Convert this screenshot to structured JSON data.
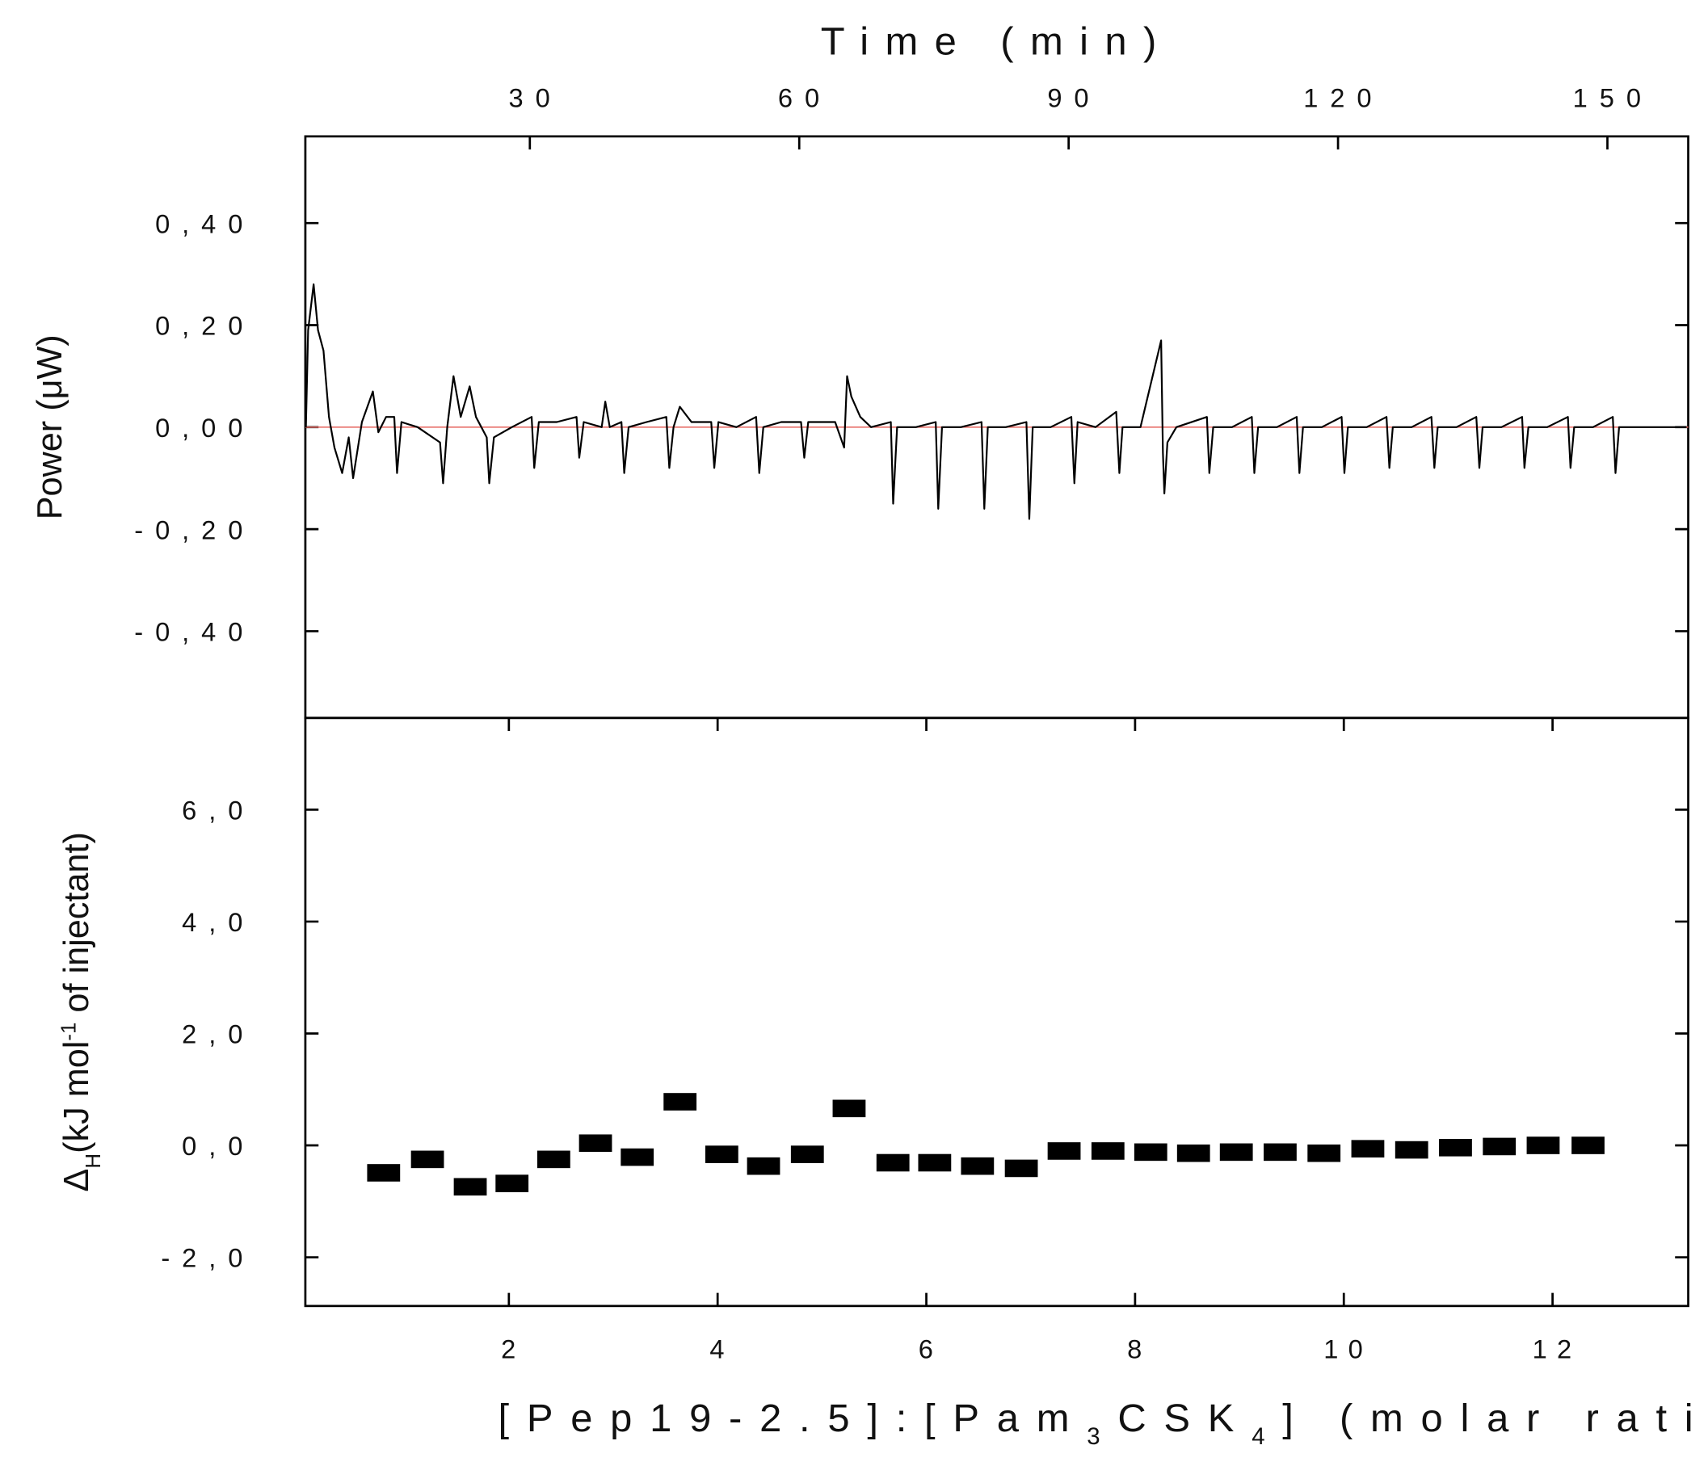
{
  "chart_data": [
    {
      "type": "line",
      "x_label": "Time (min)",
      "y_label": "Power (μW)",
      "x_axis_position": "top",
      "xlim": [
        5,
        159
      ],
      "xticks": [
        30,
        60,
        90,
        120,
        150
      ],
      "ylim": [
        -0.57,
        0.57
      ],
      "yticks": [
        {
          "value": -0.4,
          "label": "-0,40"
        },
        {
          "value": -0.2,
          "label": "-0,20"
        },
        {
          "value": 0,
          "label": "0,00"
        },
        {
          "value": 0.2,
          "label": "0,20"
        },
        {
          "value": 0.4,
          "label": "0,40"
        }
      ],
      "series": [
        {
          "color": "#e8706a",
          "x": [
            5,
            159
          ],
          "values": [
            0,
            0
          ]
        },
        {
          "color": "#000000",
          "x": [
            5.06,
            5.31,
            5.92,
            6.41,
            7.02,
            7.63,
            8.24,
            9.1,
            9.83,
            10.32,
            11.3,
            12.52,
            13.13,
            13.99,
            14.9,
            15.21,
            15.7,
            17.5,
            20.0,
            20.34,
            20.8,
            21.5,
            22.3,
            23.3,
            24.0,
            25.2,
            25.48,
            26.0,
            28.0,
            30.2,
            30.49,
            31.0,
            33.0,
            35.2,
            35.5,
            36.0,
            38.0,
            38.4,
            38.9,
            40.2,
            40.51,
            41.0,
            43.0,
            45.2,
            45.53,
            46.0,
            46.7,
            48.0,
            50.2,
            50.54,
            51.0,
            53.0,
            55.2,
            55.55,
            56.0,
            58.0,
            60.2,
            60.56,
            61.0,
            64.0,
            65.0,
            65.33,
            65.8,
            66.8,
            68.0,
            70.2,
            70.46,
            70.9,
            73.0,
            75.2,
            75.48,
            75.9,
            78.0,
            80.3,
            80.61,
            81.0,
            83.0,
            85.3,
            85.62,
            86.0,
            88.0,
            90.3,
            90.64,
            91.0,
            93.0,
            95.3,
            95.65,
            96.0,
            98.0,
            100.3,
            100.5,
            100.66,
            101.0,
            102.0,
            105.4,
            105.67,
            106.1,
            108.2,
            110.4,
            110.68,
            111.1,
            113.2,
            115.4,
            115.7,
            116.1,
            118.2,
            120.4,
            120.71,
            121.1,
            123.2,
            125.4,
            125.72,
            126.1,
            128.2,
            130.4,
            130.73,
            131.1,
            133.2,
            135.4,
            135.74,
            136.1,
            138.2,
            140.5,
            140.76,
            141.2,
            143.3,
            145.6,
            145.89,
            146.3,
            148.4,
            150.6,
            150.9,
            151.3,
            158.8
          ],
          "values": [
            0,
            0.19,
            0.28,
            0.19,
            0.15,
            0.02,
            -0.04,
            -0.09,
            -0.02,
            -0.1,
            0.01,
            0.07,
            -0.01,
            0.02,
            0.02,
            -0.09,
            0.01,
            0.0,
            -0.03,
            -0.11,
            0.0,
            0.1,
            0.02,
            0.08,
            0.02,
            -0.02,
            -0.11,
            -0.02,
            0.0,
            0.02,
            -0.08,
            0.01,
            0.01,
            0.02,
            -0.06,
            0.01,
            0.0,
            0.05,
            0.0,
            0.01,
            -0.09,
            0.0,
            0.01,
            0.02,
            -0.08,
            0.0,
            0.04,
            0.01,
            0.01,
            -0.08,
            0.01,
            0.0,
            0.02,
            -0.09,
            0.0,
            0.01,
            0.01,
            -0.06,
            0.01,
            0.01,
            -0.04,
            0.1,
            0.06,
            0.02,
            0.0,
            0.01,
            -0.15,
            0.0,
            0.0,
            0.01,
            -0.16,
            0.0,
            0.0,
            0.01,
            -0.16,
            0.0,
            0.0,
            0.01,
            -0.18,
            0.0,
            0.0,
            0.02,
            -0.11,
            0.01,
            0.0,
            0.03,
            -0.09,
            0.0,
            0.0,
            0.17,
            -0.05,
            -0.13,
            -0.03,
            0.0,
            0.02,
            -0.09,
            0.0,
            0.0,
            0.02,
            -0.09,
            0.0,
            0.0,
            0.02,
            -0.09,
            0.0,
            0.0,
            0.02,
            -0.09,
            0.0,
            0.0,
            0.02,
            -0.08,
            0.0,
            0.0,
            0.02,
            -0.08,
            0.0,
            0.0,
            0.02,
            -0.08,
            0.0,
            0.0,
            0.02,
            -0.08,
            0.0,
            0.0,
            0.02,
            -0.08,
            0.0,
            0.0,
            0.02,
            -0.09,
            0.0,
            0.0
          ]
        }
      ]
    },
    {
      "type": "scatter",
      "marker": "square",
      "color": "#000000",
      "x_label_parts": [
        {
          "text": "[Pep19-2.5]:[Pam"
        },
        {
          "text": "3",
          "sub": true
        },
        {
          "text": "CSK"
        },
        {
          "text": "4",
          "sub": true
        },
        {
          "text": "] (molar ratio)"
        }
      ],
      "y_label_parts": [
        {
          "text": "Δ"
        },
        {
          "text": "H",
          "sub": true
        },
        {
          "text": "(kJ mol"
        },
        {
          "text": "-1",
          "sup": true
        },
        {
          "text": " of injectant)"
        }
      ],
      "xlim": [
        0.05,
        13.3
      ],
      "xticks": [
        2,
        4,
        6,
        8,
        10,
        12
      ],
      "ylim": [
        -2.87,
        7.64
      ],
      "yticks": [
        {
          "value": -2,
          "label": "-2,0"
        },
        {
          "value": 0,
          "label": "0,0"
        },
        {
          "value": 2,
          "label": "2,0"
        },
        {
          "value": 4,
          "label": "4,0"
        },
        {
          "value": 6,
          "label": "6,0"
        }
      ],
      "x": [
        0.8,
        1.22,
        1.63,
        2.03,
        2.43,
        2.83,
        3.23,
        3.64,
        4.04,
        4.44,
        4.86,
        5.26,
        5.68,
        6.08,
        6.49,
        6.91,
        7.32,
        7.74,
        8.15,
        8.56,
        8.97,
        9.39,
        9.81,
        10.23,
        10.65,
        11.07,
        11.49,
        11.91,
        12.34
      ],
      "values": [
        -0.49,
        -0.25,
        -0.74,
        -0.68,
        -0.25,
        0.04,
        -0.21,
        0.78,
        -0.16,
        -0.37,
        -0.16,
        0.66,
        -0.31,
        -0.31,
        -0.37,
        -0.41,
        -0.1,
        -0.1,
        -0.12,
        -0.14,
        -0.12,
        -0.12,
        -0.14,
        -0.06,
        -0.08,
        -0.04,
        -0.02,
        0.0,
        0.0
      ]
    }
  ]
}
